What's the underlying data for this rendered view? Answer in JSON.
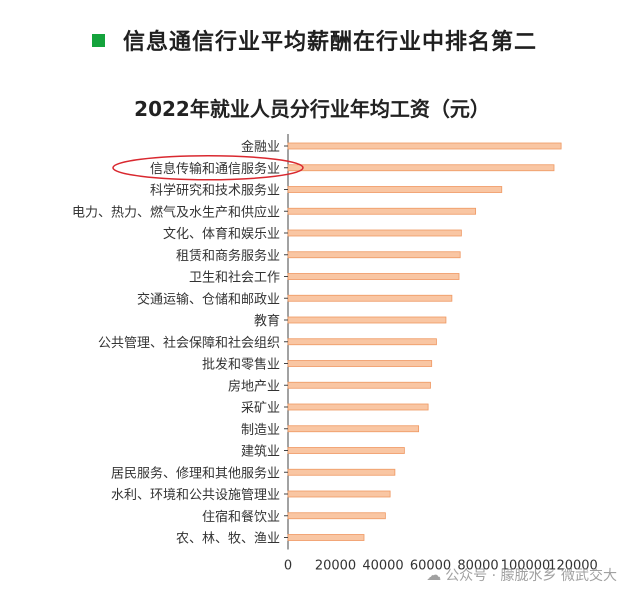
{
  "headline": "信息通信行业平均薪酬在行业中排名第二",
  "watermark": "公众号 · 朦胧水乡 微武交大",
  "colors": {
    "accent_square": "#14a33c",
    "bar_fill": "#f9c6a3",
    "bar_stroke": "#ef9862",
    "highlight_ellipse": "#d9282f"
  },
  "icons": {
    "watermark": "wechat-icon"
  },
  "chart_data": {
    "type": "bar",
    "orientation": "horizontal",
    "title": "2022年就业人员分行业年均工资（元）",
    "xlabel": "",
    "ylabel": "",
    "xlim": [
      0,
      120000
    ],
    "x_ticks": [
      0,
      20000,
      40000,
      60000,
      80000,
      100000,
      120000
    ],
    "grid": false,
    "highlighted_category": "信息传输和通信服务业",
    "categories": [
      "金融业",
      "信息传输和通信服务业",
      "科学研究和技术服务业",
      "电力、热力、燃气及水生产和供应业",
      "文化、体育和娱乐业",
      "租赁和商务服务业",
      "卫生和社会工作",
      "交通运输、仓储和邮政业",
      "教育",
      "公共管理、社会保障和社会组织",
      "批发和零售业",
      "房地产业",
      "采矿业",
      "制造业",
      "建筑业",
      "居民服务、修理和其他服务业",
      "水利、环境和公共设施管理业",
      "住宿和餐饮业",
      "农、林、牧、渔业"
    ],
    "series": [
      {
        "values": [
          115000,
          112000,
          90000,
          79000,
          73000,
          72500,
          72000,
          69000,
          66500,
          62500,
          60500,
          60000,
          59000,
          55000,
          49000,
          45000,
          43000,
          41000,
          32000
        ]
      }
    ]
  }
}
